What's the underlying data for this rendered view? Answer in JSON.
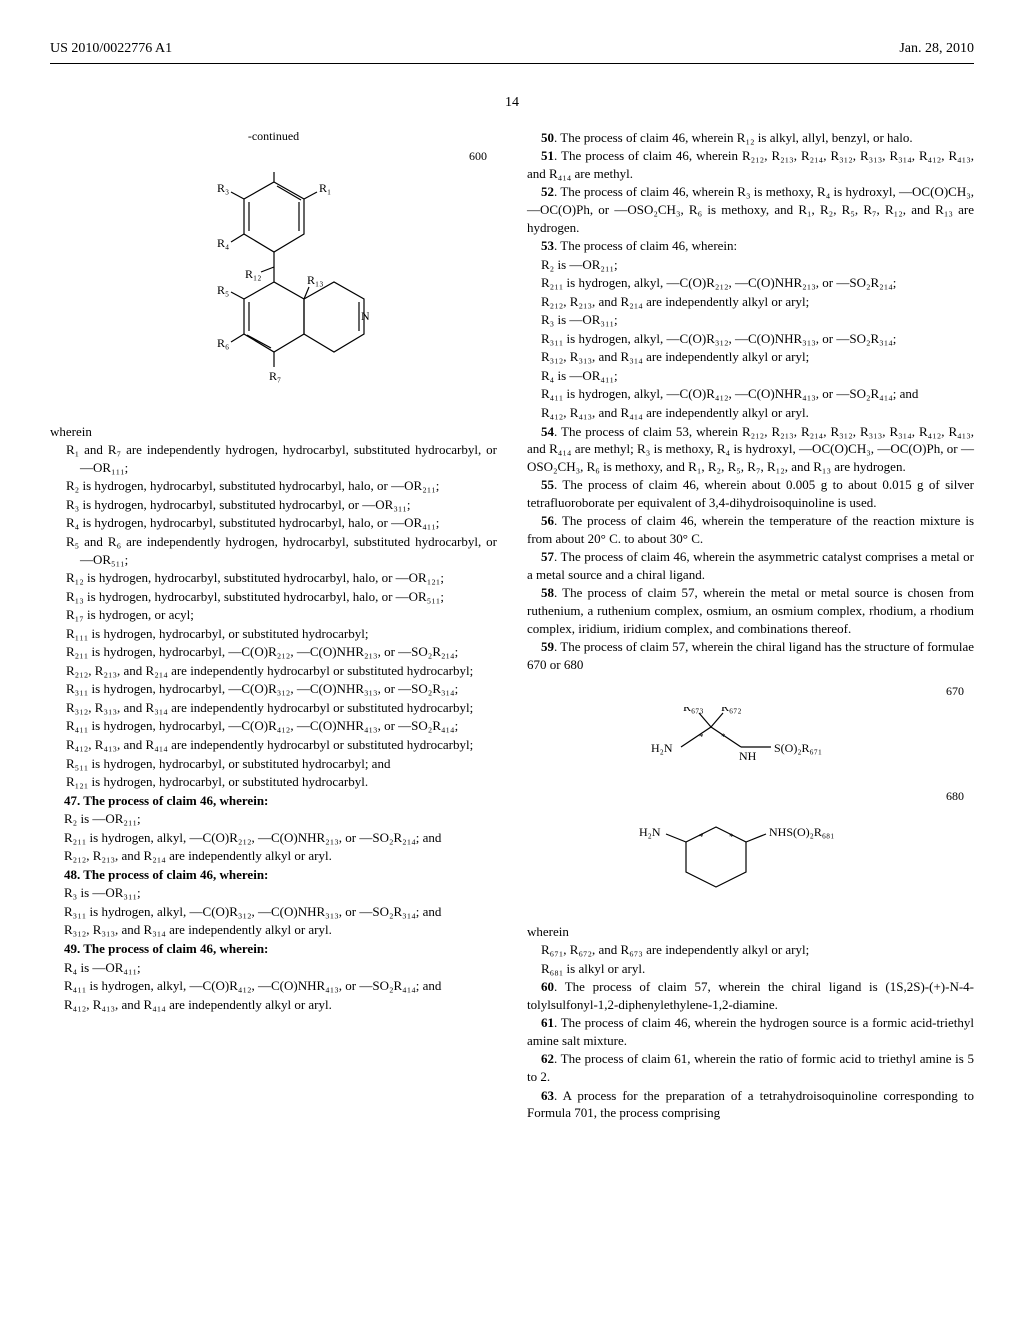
{
  "header": {
    "docNumber": "US 2010/0022776 A1",
    "date": "Jan. 28, 2010"
  },
  "pageNumber": "14",
  "continued": "-continued",
  "formula600": "600",
  "leftCol": {
    "wherein": "wherein",
    "defs": [
      "R₁ and R₇ are independently hydrogen, hydrocarbyl, substituted hydrocarbyl, or —OR₁₁₁;",
      "R₂ is hydrogen, hydrocarbyl, substituted hydrocarbyl, halo, or —OR₂₁₁;",
      "R₃ is hydrogen, hydrocarbyl, substituted hydrocarbyl, or —OR₃₁₁;",
      "R₄ is hydrogen, hydrocarbyl, substituted hydrocarbyl, halo, or —OR₄₁₁;",
      "R₅ and R₆ are independently hydrogen, hydrocarbyl, substituted hydrocarbyl, or —OR₅₁₁;",
      "R₁₂ is hydrogen, hydrocarbyl, substituted hydrocarbyl, halo, or —OR₁₂₁;",
      "R₁₃ is hydrogen, hydrocarbyl, substituted hydrocarbyl, halo, or —OR₅₁₁;",
      "R₁₇ is hydrogen, or acyl;",
      "R₁₁₁ is hydrogen, hydrocarbyl, or substituted hydrocarbyl;",
      "R₂₁₁ is hydrogen, hydrocarbyl, —C(O)R₂₁₂, —C(O)NHR₂₁₃, or —SO₂R₂₁₄;",
      "R₂₁₂, R₂₁₃, and R₂₁₄ are independently hydrocarbyl or substituted hydrocarbyl;",
      "R₃₁₁ is hydrogen, hydrocarbyl, —C(O)R₃₁₂, —C(O)NHR₃₁₃, or —SO₂R₃₁₄;",
      "R₃₁₂, R₃₁₃, and R₃₁₄ are independently hydrocarbyl or substituted hydrocarbyl;",
      "R₄₁₁ is hydrogen, hydrocarbyl, —C(O)R₄₁₂, —C(O)NHR₄₁₃, or —SO₂R₄₁₄;",
      "R₄₁₂, R₄₁₃, and R₄₁₄ are independently hydrocarbyl or substituted hydrocarbyl;",
      "R₅₁₁ is hydrogen, hydrocarbyl, or substituted hydrocarbyl; and",
      "R₁₂₁ is hydrogen, hydrocarbyl, or substituted hydrocarbyl."
    ],
    "claim47": "47. The process of claim 46, wherein:",
    "claim47defs": [
      "R₂ is —OR₂₁₁;",
      "R₂₁₁ is hydrogen, alkyl, —C(O)R₂₁₂, —C(O)NHR₂₁₃, or —SO₂R₂₁₄; and",
      "R₂₁₂, R₂₁₃, and R₂₁₄ are independently alkyl or aryl."
    ],
    "claim48": "48. The process of claim 46, wherein:",
    "claim48defs": [
      "R₃ is —OR₃₁₁;",
      "R₃₁₁ is hydrogen, alkyl, —C(O)R₃₁₂, —C(O)NHR₃₁₃, or —SO₂R₃₁₄; and",
      "R₃₁₂, R₃₁₃, and R₃₁₄ are independently alkyl or aryl."
    ],
    "claim49": "49. The process of claim 46, wherein:",
    "claim49defs": [
      "R₄ is —OR₄₁₁;",
      "R₄₁₁ is hydrogen, alkyl, —C(O)R₄₁₂, —C(O)NHR₄₁₃, or —SO₂R₄₁₄; and",
      "R₄₁₂, R₄₁₃, and R₄₁₄ are independently alkyl or aryl."
    ]
  },
  "rightCol": {
    "claim50": "50. The process of claim 46, wherein R₁₂ is alkyl, allyl, benzyl, or halo.",
    "claim51": "51. The process of claim 46, wherein R₂₁₂, R₂₁₃, R₂₁₄, R₃₁₂, R₃₁₃, R₃₁₄, R₄₁₂, R₄₁₃, and R₄₁₄ are methyl.",
    "claim52": "52. The process of claim 46, wherein R₃ is methoxy, R₄ is hydroxyl, —OC(O)CH₃, —OC(O)Ph, or —OSO₂CH₃, R₆ is methoxy, and R₁, R₂, R₅, R₇, R₁₂, and R₁₃ are hydrogen.",
    "claim53": "53. The process of claim 46, wherein:",
    "claim53defs": [
      "R₂ is —OR₂₁₁;",
      "R₂₁₁ is hydrogen, alkyl, —C(O)R₂₁₂, —C(O)NHR₂₁₃, or —SO₂R₂₁₄;",
      "R₂₁₂, R₂₁₃, and R₂₁₄ are independently alkyl or aryl;",
      "R₃ is —OR₃₁₁;",
      "R₃₁₁ is hydrogen, alkyl, —C(O)R₃₁₂, —C(O)NHR₃₁₃, or —SO₂R₃₁₄;",
      "R₃₁₂, R₃₁₃, and R₃₁₄ are independently alkyl or aryl;",
      "R₄ is —OR₄₁₁;",
      "R₄₁₁ is hydrogen, alkyl, —C(O)R₄₁₂, —C(O)NHR₄₁₃, or —SO₂R₄₁₄; and",
      "R₄₁₂, R₄₁₃, and R₄₁₄ are independently alkyl or aryl."
    ],
    "claim54": "54. The process of claim 53, wherein R₂₁₂, R₂₁₃, R₂₁₄, R₃₁₂, R₃₁₃, R₃₁₄, R₄₁₂, R₄₁₃, and R₄₁₄ are methyl; R₃ is methoxy, R₄ is hydroxyl, —OC(O)CH₃, —OC(O)Ph, or —OSO₂CH₃, R₆ is methoxy, and R₁, R₂, R₅, R₇, R₁₂, and R₁₃ are hydrogen.",
    "claim55": "55. The process of claim 46, wherein about 0.005 g to about 0.015 g of silver tetrafluoroborate per equivalent of 3,4-dihydroisoquinoline is used.",
    "claim56": "56. The process of claim 46, wherein the temperature of the reaction mixture is from about 20° C. to about 30° C.",
    "claim57": "57. The process of claim 46, wherein the asymmetric catalyst comprises a metal or a metal source and a chiral ligand.",
    "claim58": "58. The process of claim 57, wherein the metal or metal source is chosen from ruthenium, a ruthenium complex, osmium, an osmium complex, rhodium, a rhodium complex, iridium, iridium complex, and combinations thereof.",
    "claim59": "59. The process of claim 57, wherein the chiral ligand has the structure of formulae 670 or 680",
    "formula670": "670",
    "formula680": "680",
    "wherein": "wherein",
    "claim59defs": [
      "R₆₇₁, R₆₇₂, and R₆₇₃ are independently alkyl or aryl;",
      "R₆₈₁ is alkyl or aryl."
    ],
    "claim60": "60. The process of claim 57, wherein the chiral ligand is (1S,2S)-(+)-N-4-tolylsulfonyl-1,2-diphenylethylene-1,2-diamine.",
    "claim61": "61. The process of claim 46, wherein the hydrogen source is a formic acid-triethyl amine salt mixture.",
    "claim62": "62. The process of claim 61, wherein the ratio of formic acid to triethyl amine is 5 to 2.",
    "claim63": "63. A process for the preparation of a tetrahydroisoquinoline corresponding to Formula 701, the process comprising"
  },
  "struct600Labels": {
    "R1": "R₁",
    "R2": "R₂",
    "R3": "R₃",
    "R4": "R₄",
    "R5": "R₅",
    "R6": "R₆",
    "R7": "R₇",
    "R12": "R₁₂",
    "R13": "R₁₃",
    "N": "N"
  },
  "struct670Labels": {
    "R672": "R₆₇₂",
    "R673": "R₆₇₃",
    "H2Na": "H₂N",
    "NH": "NH",
    "SO2R671": "S(O)₂R₆₇₁"
  },
  "struct680Labels": {
    "H2Nb": "H₂N",
    "NHSO2R681": "NHS(O)₂R₆₈₁"
  }
}
